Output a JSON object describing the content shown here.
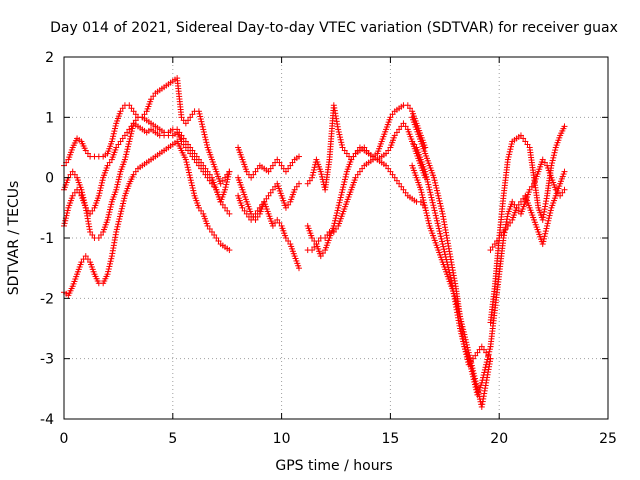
{
  "chart_data": {
    "type": "scatter",
    "title": "Day 014 of 2021, Sidereal Day-to-day VTEC variation (SDTVAR) for receiver guax",
    "xlabel": "GPS time / hours",
    "ylabel": "SDTVAR / TECUs",
    "xlim": [
      0,
      25
    ],
    "ylim": [
      -4,
      2
    ],
    "xticks": [
      "0",
      "5",
      "10",
      "15",
      "20",
      "25"
    ],
    "yticks": [
      "-4",
      "-3",
      "-2",
      "-1",
      "0",
      "1",
      "2"
    ],
    "grid": true,
    "legend": "none",
    "marker": "plus",
    "color": "#ff0000",
    "series": [
      {
        "x": [
          0.0,
          0.2,
          0.4,
          0.6,
          0.8,
          1.0,
          1.2,
          1.4,
          1.6,
          1.8,
          2.0,
          2.2,
          2.4,
          2.6,
          2.8,
          3.0,
          3.2,
          3.4,
          3.6,
          3.8,
          4.0,
          4.2,
          4.4,
          4.6,
          4.8,
          5.0,
          5.2,
          5.4,
          5.6,
          5.8,
          6.0,
          6.2,
          6.4,
          6.6,
          6.8,
          7.0,
          7.2,
          7.4,
          7.6
        ],
        "y": [
          0.2,
          0.3,
          0.5,
          0.65,
          0.6,
          0.45,
          0.35,
          0.35,
          0.35,
          0.35,
          0.4,
          0.6,
          0.9,
          1.1,
          1.2,
          1.2,
          1.1,
          1.0,
          1.0,
          1.1,
          1.3,
          1.4,
          1.45,
          1.5,
          1.55,
          1.6,
          1.65,
          1.0,
          0.9,
          1.0,
          1.1,
          1.1,
          0.8,
          0.5,
          0.3,
          0.1,
          -0.1,
          0.0,
          0.1
        ]
      },
      {
        "x": [
          0.0,
          0.2,
          0.4,
          0.6,
          0.8,
          1.0,
          1.2,
          1.4,
          1.6,
          1.8,
          2.0,
          2.2,
          2.4,
          2.6,
          2.8,
          3.0,
          3.2,
          3.4,
          3.6,
          3.8,
          4.0,
          4.2,
          4.4,
          4.6,
          4.8,
          5.0,
          5.2,
          5.4,
          5.6,
          5.8,
          6.0,
          6.2,
          6.4,
          6.6,
          6.8,
          7.0,
          7.2,
          7.4,
          7.6
        ],
        "y": [
          -0.8,
          -0.5,
          -0.3,
          -0.2,
          -0.3,
          -0.5,
          -0.6,
          -0.5,
          -0.3,
          0.0,
          0.2,
          0.3,
          0.5,
          0.6,
          0.7,
          0.8,
          0.9,
          0.85,
          0.8,
          0.75,
          0.8,
          0.75,
          0.7,
          0.7,
          0.7,
          0.7,
          0.75,
          0.6,
          0.5,
          0.4,
          0.3,
          0.2,
          0.1,
          0.0,
          -0.1,
          -0.2,
          -0.4,
          -0.2,
          0.1
        ]
      },
      {
        "x": [
          0.0,
          0.2,
          0.4,
          0.6,
          0.8,
          1.0,
          1.2,
          1.4,
          1.6,
          1.8,
          2.0,
          2.2,
          2.4,
          2.6,
          2.8,
          3.0,
          3.2,
          3.4,
          3.6,
          3.8,
          4.0,
          4.2,
          4.4,
          4.6,
          4.8,
          5.0,
          5.2,
          5.4,
          5.6,
          5.8,
          6.0,
          6.2,
          6.4,
          6.6,
          6.8,
          7.0,
          7.2,
          7.4,
          7.6
        ],
        "y": [
          -1.9,
          -1.95,
          -1.8,
          -1.6,
          -1.4,
          -1.3,
          -1.4,
          -1.6,
          -1.75,
          -1.75,
          -1.6,
          -1.3,
          -0.9,
          -0.6,
          -0.3,
          -0.1,
          0.05,
          0.15,
          0.2,
          0.25,
          0.3,
          0.35,
          0.4,
          0.45,
          0.5,
          0.55,
          0.6,
          0.45,
          0.3,
          0.0,
          -0.3,
          -0.5,
          -0.6,
          -0.8,
          -0.9,
          -1.0,
          -1.1,
          -1.15,
          -1.2
        ]
      },
      {
        "x": [
          0.0,
          0.2,
          0.4,
          0.6,
          0.8,
          1.0,
          1.2,
          1.4,
          1.6,
          1.8,
          2.0,
          2.2,
          2.4,
          2.6,
          2.8,
          3.0,
          3.2,
          3.4,
          3.6,
          3.8,
          4.0,
          4.2,
          4.4,
          4.6,
          4.8,
          5.0,
          5.2,
          5.4,
          5.6,
          5.8,
          6.0,
          6.2,
          6.4,
          6.6,
          6.8,
          7.0,
          7.2,
          7.4,
          7.6
        ],
        "y": [
          -0.2,
          0.0,
          0.1,
          0.0,
          -0.2,
          -0.5,
          -0.9,
          -1.0,
          -1.0,
          -0.9,
          -0.7,
          -0.4,
          -0.2,
          0.1,
          0.3,
          0.6,
          0.9,
          1.0,
          1.0,
          0.95,
          0.9,
          0.85,
          0.8,
          0.75,
          0.75,
          0.8,
          0.8,
          0.7,
          0.6,
          0.5,
          0.4,
          0.3,
          0.2,
          0.1,
          0.0,
          -0.2,
          -0.4,
          -0.5,
          -0.6
        ]
      },
      {
        "x": [
          8.0,
          8.2,
          8.4,
          8.6,
          8.8,
          9.0,
          9.2,
          9.4,
          9.6,
          9.8,
          10.0,
          10.2,
          10.4,
          10.6,
          10.8
        ],
        "y": [
          0.5,
          0.3,
          0.1,
          0.0,
          0.1,
          0.2,
          0.15,
          0.1,
          0.2,
          0.3,
          0.2,
          0.1,
          0.2,
          0.3,
          0.35
        ]
      },
      {
        "x": [
          8.0,
          8.2,
          8.4,
          8.6,
          8.8,
          9.0,
          9.2,
          9.4,
          9.6,
          9.8,
          10.0,
          10.2,
          10.4,
          10.6,
          10.8
        ],
        "y": [
          0.0,
          -0.2,
          -0.4,
          -0.6,
          -0.7,
          -0.6,
          -0.4,
          -0.3,
          -0.2,
          -0.1,
          -0.3,
          -0.5,
          -0.4,
          -0.2,
          -0.1
        ]
      },
      {
        "x": [
          8.0,
          8.2,
          8.4,
          8.6,
          8.8,
          9.0,
          9.2,
          9.4,
          9.6,
          9.8,
          10.0,
          10.2,
          10.4,
          10.6,
          10.8
        ],
        "y": [
          -0.3,
          -0.5,
          -0.6,
          -0.7,
          -0.6,
          -0.5,
          -0.4,
          -0.6,
          -0.8,
          -0.7,
          -0.8,
          -1.0,
          -1.1,
          -1.3,
          -1.5
        ]
      },
      {
        "x": [
          11.2,
          11.4,
          11.6,
          11.8,
          12.0,
          12.2,
          12.4,
          12.6,
          12.8,
          13.0,
          13.2,
          13.4,
          13.6,
          13.8,
          14.0,
          14.2,
          14.4,
          14.6,
          14.8,
          15.0,
          15.2,
          15.4,
          15.6,
          15.8,
          16.0,
          16.2,
          16.4,
          16.6
        ],
        "y": [
          -0.1,
          0.0,
          0.3,
          0.1,
          -0.2,
          0.3,
          1.2,
          0.8,
          0.5,
          0.4,
          0.3,
          0.4,
          0.45,
          0.5,
          0.4,
          0.35,
          0.4,
          0.6,
          0.8,
          1.0,
          1.1,
          1.15,
          1.2,
          1.2,
          1.1,
          0.9,
          0.7,
          0.5
        ]
      },
      {
        "x": [
          11.2,
          11.4,
          11.6,
          11.8,
          12.0,
          12.2,
          12.4,
          12.6,
          12.8,
          13.0,
          13.2,
          13.4,
          13.6,
          13.8,
          14.0,
          14.2,
          14.4,
          14.6,
          14.8,
          15.0,
          15.2,
          15.4,
          15.6,
          15.8,
          16.0,
          16.2,
          16.4,
          16.6
        ],
        "y": [
          -0.8,
          -1.0,
          -1.1,
          -1.3,
          -1.2,
          -1.0,
          -0.8,
          -0.5,
          -0.2,
          0.1,
          0.3,
          0.4,
          0.5,
          0.45,
          0.4,
          0.35,
          0.3,
          0.35,
          0.4,
          0.5,
          0.7,
          0.8,
          0.9,
          0.8,
          0.6,
          0.4,
          0.2,
          0.0
        ]
      },
      {
        "x": [
          11.2,
          11.4,
          11.6,
          11.8,
          12.0,
          12.2,
          12.4,
          12.6,
          12.8,
          13.0,
          13.2,
          13.4,
          13.6,
          13.8,
          14.0,
          14.2,
          14.4,
          14.6,
          14.8,
          15.0,
          15.2,
          15.4,
          15.6,
          15.8,
          16.0,
          16.2,
          16.4,
          16.6
        ],
        "y": [
          -1.2,
          -1.2,
          -1.1,
          -1.0,
          -1.0,
          -0.9,
          -0.9,
          -0.8,
          -0.6,
          -0.4,
          -0.2,
          0.0,
          0.1,
          0.2,
          0.25,
          0.3,
          0.3,
          0.25,
          0.2,
          0.1,
          0.0,
          -0.1,
          -0.2,
          -0.3,
          -0.35,
          -0.4,
          -0.4,
          -0.5
        ]
      },
      {
        "x": [
          16.0,
          16.2,
          16.4,
          16.6,
          16.8,
          17.0,
          17.2,
          17.4,
          17.6,
          17.8,
          18.0,
          18.2,
          18.4,
          18.6,
          18.8,
          19.0,
          19.2,
          19.4,
          19.6
        ],
        "y": [
          1.0,
          0.8,
          0.6,
          0.4,
          0.2,
          0.0,
          -0.3,
          -0.6,
          -1.0,
          -1.4,
          -1.8,
          -2.3,
          -2.8,
          -3.1,
          -3.0,
          -2.9,
          -2.8,
          -2.9,
          -3.0
        ]
      },
      {
        "x": [
          16.0,
          16.2,
          16.4,
          16.6,
          16.8,
          17.0,
          17.2,
          17.4,
          17.6,
          17.8,
          18.0,
          18.2,
          18.4,
          18.6,
          18.8,
          19.0,
          19.2,
          19.4,
          19.6
        ],
        "y": [
          0.2,
          0.0,
          -0.2,
          -0.5,
          -0.8,
          -1.0,
          -1.2,
          -1.4,
          -1.6,
          -1.8,
          -2.0,
          -2.3,
          -2.6,
          -2.9,
          -3.2,
          -3.5,
          -3.8,
          -3.4,
          -3.0
        ]
      },
      {
        "x": [
          16.0,
          16.2,
          16.4,
          16.6,
          16.8,
          17.0,
          17.2,
          17.4,
          17.6,
          17.8,
          18.0,
          18.2,
          18.4,
          18.6,
          18.8,
          19.0,
          19.2,
          19.4,
          19.6
        ],
        "y": [
          0.6,
          0.5,
          0.3,
          0.1,
          -0.2,
          -0.5,
          -0.8,
          -1.1,
          -1.4,
          -1.7,
          -2.1,
          -2.5,
          -2.8,
          -3.0,
          -3.3,
          -3.6,
          -3.4,
          -3.1,
          -2.8
        ]
      },
      {
        "x": [
          19.6,
          19.8,
          20.0,
          20.2,
          20.4,
          20.6,
          20.8,
          21.0,
          21.2,
          21.4,
          21.6,
          21.8,
          22.0,
          22.2,
          22.4,
          22.6,
          22.8,
          23.0
        ],
        "y": [
          -2.4,
          -1.8,
          -1.0,
          -0.3,
          0.3,
          0.6,
          0.65,
          0.7,
          0.6,
          0.5,
          0.0,
          -0.5,
          -0.7,
          -0.3,
          0.2,
          0.5,
          0.7,
          0.85
        ]
      },
      {
        "x": [
          19.6,
          19.8,
          20.0,
          20.2,
          20.4,
          20.6,
          20.8,
          21.0,
          21.2,
          21.4,
          21.6,
          21.8,
          22.0,
          22.2,
          22.4,
          22.6,
          22.8,
          23.0
        ],
        "y": [
          -2.8,
          -2.2,
          -1.6,
          -1.0,
          -0.6,
          -0.4,
          -0.5,
          -0.6,
          -0.4,
          -0.2,
          -0.1,
          0.1,
          0.3,
          0.2,
          0.0,
          -0.2,
          -0.3,
          -0.2
        ]
      },
      {
        "x": [
          19.6,
          19.8,
          20.0,
          20.2,
          20.4,
          20.6,
          20.8,
          21.0,
          21.2,
          21.4,
          21.6,
          21.8,
          22.0,
          22.2,
          22.4,
          22.6,
          22.8,
          23.0
        ],
        "y": [
          -1.2,
          -1.1,
          -1.0,
          -0.9,
          -0.8,
          -0.7,
          -0.5,
          -0.4,
          -0.3,
          -0.5,
          -0.7,
          -0.9,
          -1.1,
          -0.8,
          -0.5,
          -0.3,
          -0.1,
          0.1
        ]
      }
    ]
  }
}
